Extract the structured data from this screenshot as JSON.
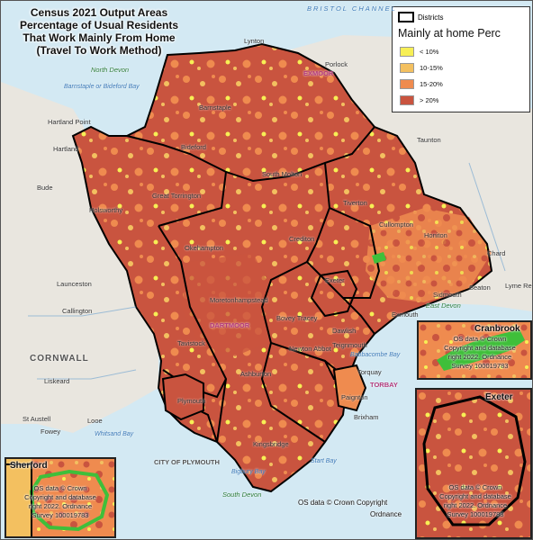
{
  "title": {
    "line1": "Census 2021 Output Areas",
    "line2": "Percentage of Usual Residents",
    "line3": "That Work Mainly From Home",
    "line4": "(Travel To Work Method)"
  },
  "legend": {
    "districts_label": "Districts",
    "heading": "Mainly at home Perc",
    "classes": [
      {
        "label": "< 10%",
        "color": "#f7ef55"
      },
      {
        "label": "10-15%",
        "color": "#f3c060"
      },
      {
        "label": "15-20%",
        "color": "#ef8b4f"
      },
      {
        "label": "> 20%",
        "color": "#c9543f"
      }
    ]
  },
  "colors": {
    "sea": "#d3e9f3",
    "land": "#e9e6df",
    "district_border": "#000000",
    "wfh_low": "#f7ef55",
    "wfh_mid_low": "#f3c060",
    "wfh_mid_high": "#ef8b4f",
    "wfh_high": "#c9543f",
    "sherford_green": "#3fbf3a"
  },
  "place_labels": {
    "bristol_channel": "BRISTOL CHANNEL",
    "exmoor": "EXMOOR",
    "dartmoor": "DARTMOOR",
    "cornwall": "CORNWALL",
    "torbay": "TORBAY",
    "lynton": "Lynton",
    "porlock": "Porlock",
    "barnstaple": "Barnstaple",
    "north_devon": "North Devon",
    "bideford": "Bideford",
    "hartland": "Hartland",
    "hartland_point": "Hartland Point",
    "bude": "Bude",
    "holsworthy": "Holsworthy",
    "launceston": "Launceston",
    "okehampton": "Okehampton",
    "tavistock": "Tavistock",
    "callington": "Callington",
    "liskeard": "Liskeard",
    "looe": "Looe",
    "fowey": "Fowey",
    "city_of_plymouth": "CITY OF PLYMOUTH",
    "plymouth": "Plymouth",
    "exeter": "Exeter",
    "taunton": "Taunton",
    "honiton": "Honiton",
    "seaton": "Seaton",
    "sidmouth": "Sidmouth",
    "exmouth": "Exmouth",
    "east_devon": "East Devon",
    "dawlish": "Dawlish",
    "teignmouth": "Teignmouth",
    "torquay": "Torquay",
    "paignton": "Paignton",
    "brixham": "Brixham",
    "south_devon": "South Devon",
    "bigbury_bay": "Bigbury Bay",
    "start_bay": "Start Bay",
    "babbacombe_bay": "Babbacombe Bay",
    "whitsand_bay": "Whitsand Bay",
    "st_austell": "St Austell",
    "bovey_tracey": "Bovey Tracey",
    "moretonhampstead": "Moretonhampstead",
    "chard": "Chard",
    "lyme_regis": "Lyme Regis",
    "barnstaple_bay": "Barnstaple or Bideford Bay",
    "south_molton": "South Molton",
    "tiverton": "Tiverton",
    "crediton": "Crediton",
    "newton_abbot": "Newton Abbot",
    "kingsbridge": "Kingsbridge",
    "ashburton": "Ashburton",
    "cullompton": "Cullompton",
    "great_torrington": "Great Torrington"
  },
  "copyright_main": "OS data © Crown Copyright",
  "copyright_sub": "Ordnance",
  "insets": {
    "cranbrook": {
      "title": "Cranbrook",
      "copy1": "OS data © Crown",
      "copy2": "Copyright and database",
      "copy3": "right 2022. Ordnance",
      "copy4": "Survey 100019783"
    },
    "exeter": {
      "title": "Exeter",
      "copy1": "OS data © Crown",
      "copy2": "Copyright and database",
      "copy3": "right 2022. Ordnance",
      "copy4": "Survey 100019783"
    },
    "sherford": {
      "title": "Sherford",
      "copy1": "OS data © Crown",
      "copy2": "Copyright and database",
      "copy3": "right 2022. Ordnance",
      "copy4": "Survey 100019783"
    }
  }
}
